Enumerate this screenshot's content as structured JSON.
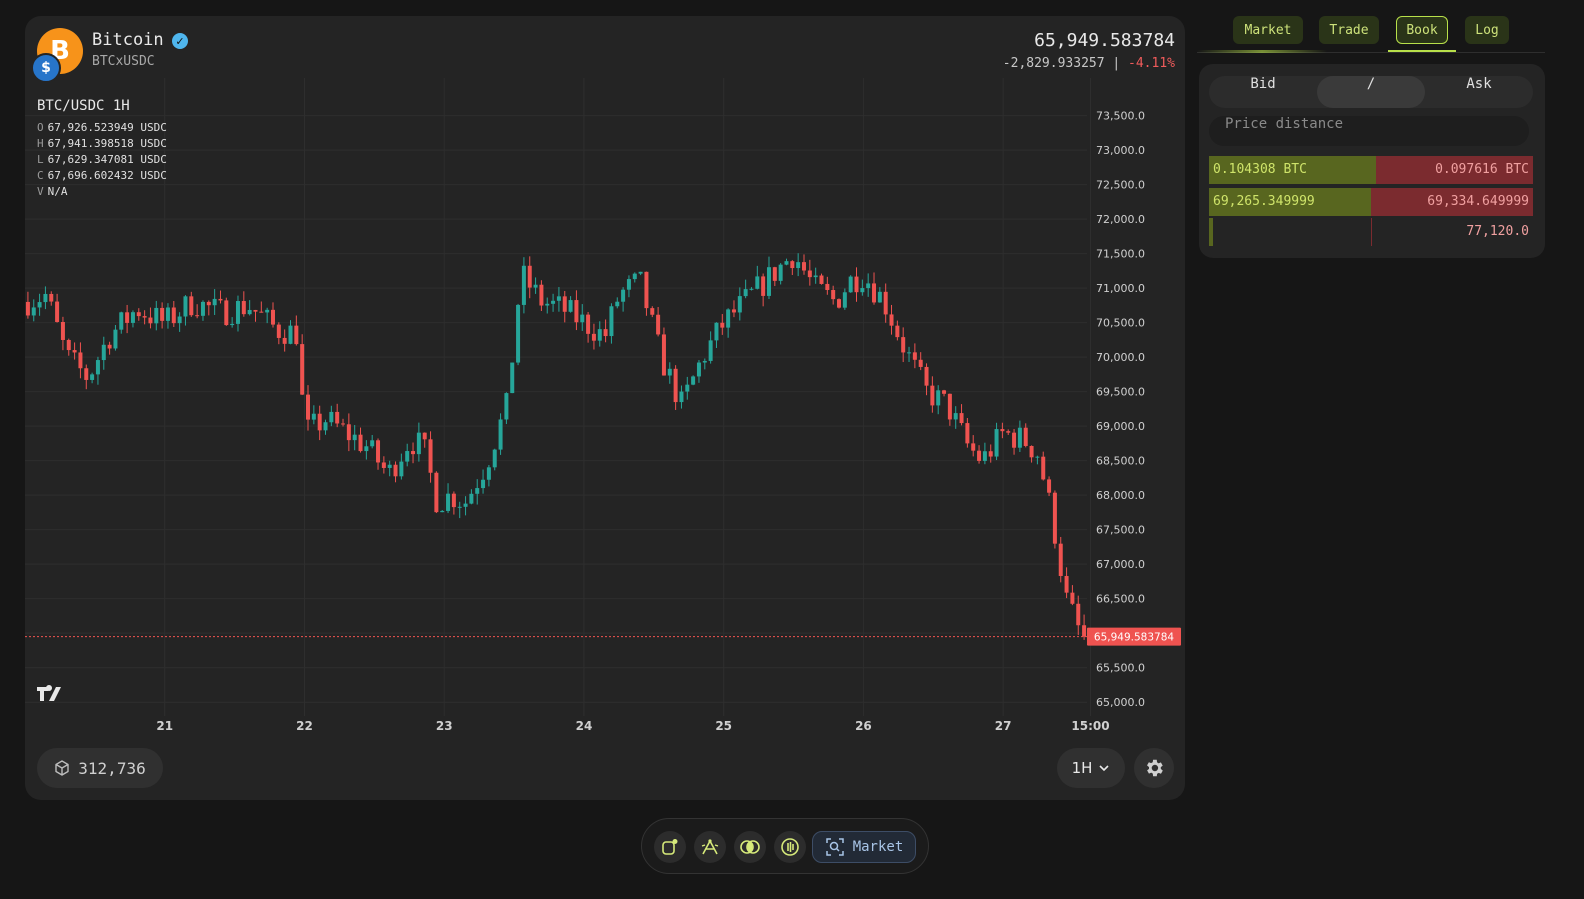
{
  "asset": {
    "name": "Bitcoin",
    "pair": "BTCxUSDC",
    "price": "65,949.583784",
    "change_abs": "-2,829.933257",
    "change_sep": "|",
    "change_pct": "-4.11%",
    "base_symbol": "B",
    "quote_symbol": "$"
  },
  "chart_header": {
    "title": "BTC/USDC 1H",
    "ohlc": [
      {
        "key": "O",
        "value": "67,926.523949 USDC"
      },
      {
        "key": "H",
        "value": "67,941.398518 USDC"
      },
      {
        "key": "L",
        "value": "67,629.347081 USDC"
      },
      {
        "key": "C",
        "value": "67,696.602432 USDC"
      },
      {
        "key": "V",
        "value": "N/A"
      }
    ]
  },
  "chart_data": {
    "type": "candlestick",
    "interval": "1H",
    "ylim": [
      64800,
      73900
    ],
    "y_ticks": [
      65000,
      65500,
      66000,
      66500,
      67000,
      67500,
      68000,
      68500,
      69000,
      69500,
      70000,
      70500,
      71000,
      71500,
      72000,
      72500,
      73000,
      73500
    ],
    "y_tick_labels": [
      "65,000.0",
      "65,500.0",
      "66,000.0",
      "66,500.0",
      "67,000.0",
      "67,500.0",
      "68,000.0",
      "68,500.0",
      "69,000.0",
      "69,500.0",
      "70,000.0",
      "70,500.0",
      "71,000.0",
      "71,500.0",
      "72,000.0",
      "72,500.0",
      "73,000.0",
      "73,500.0"
    ],
    "x_start_day": 20.0,
    "x_end_day": 27.6,
    "x_ticks": [
      {
        "day": 21,
        "label": "21"
      },
      {
        "day": 22,
        "label": "22"
      },
      {
        "day": 23,
        "label": "23"
      },
      {
        "day": 24,
        "label": "24"
      },
      {
        "day": 25,
        "label": "25"
      },
      {
        "day": 26,
        "label": "26"
      },
      {
        "day": 27,
        "label": "27"
      },
      {
        "day": 27.625,
        "label": "15:00"
      }
    ],
    "anchors": [
      [
        20.0,
        70800
      ],
      [
        20.15,
        70900
      ],
      [
        20.3,
        70000
      ],
      [
        20.45,
        69700
      ],
      [
        20.6,
        70300
      ],
      [
        20.8,
        70700
      ],
      [
        21.0,
        70500
      ],
      [
        21.2,
        70800
      ],
      [
        21.4,
        70650
      ],
      [
        21.6,
        70750
      ],
      [
        21.8,
        70400
      ],
      [
        21.95,
        70350
      ],
      [
        22.0,
        68900
      ],
      [
        22.15,
        69100
      ],
      [
        22.3,
        68900
      ],
      [
        22.45,
        68700
      ],
      [
        22.6,
        68300
      ],
      [
        22.75,
        68800
      ],
      [
        22.85,
        68700
      ],
      [
        22.95,
        67900
      ],
      [
        23.05,
        68000
      ],
      [
        23.15,
        67900
      ],
      [
        23.3,
        68450
      ],
      [
        23.45,
        69300
      ],
      [
        23.55,
        71200
      ],
      [
        23.7,
        70800
      ],
      [
        23.85,
        70700
      ],
      [
        24.0,
        70500
      ],
      [
        24.15,
        70300
      ],
      [
        24.25,
        70900
      ],
      [
        24.4,
        71100
      ],
      [
        24.55,
        70000
      ],
      [
        24.7,
        69300
      ],
      [
        24.85,
        70000
      ],
      [
        25.0,
        70500
      ],
      [
        25.2,
        70900
      ],
      [
        25.35,
        71200
      ],
      [
        25.5,
        71500
      ],
      [
        25.65,
        71000
      ],
      [
        25.8,
        70800
      ],
      [
        25.9,
        71100
      ],
      [
        26.0,
        71200
      ],
      [
        26.15,
        70800
      ],
      [
        26.3,
        70100
      ],
      [
        26.45,
        69500
      ],
      [
        26.6,
        69300
      ],
      [
        26.75,
        68700
      ],
      [
        26.85,
        68500
      ],
      [
        27.0,
        68900
      ],
      [
        27.15,
        68800
      ],
      [
        27.25,
        68600
      ],
      [
        27.35,
        67700
      ],
      [
        27.45,
        66500
      ],
      [
        27.55,
        66000
      ],
      [
        27.6,
        65950
      ]
    ],
    "last_price": 65949.583784,
    "last_price_label": "65,949.583784",
    "up_color": "#26a69a",
    "down_color": "#ef5350"
  },
  "footer": {
    "block_height": "312,736",
    "timeframe": "1H"
  },
  "tabs": [
    {
      "label": "Market",
      "active": false
    },
    {
      "label": "Trade",
      "active": false
    },
    {
      "label": "Book",
      "active": true
    },
    {
      "label": "Log",
      "active": false
    }
  ],
  "orderbook": {
    "segments": [
      "Bid",
      "/",
      "Ask"
    ],
    "price_distance_placeholder": "Price distance",
    "rows": [
      {
        "bid": "0.104308 BTC",
        "ask": "0.097616 BTC",
        "bid_frac": 0.515,
        "ask_frac": 0.485
      },
      {
        "bid": "69,265.349999",
        "ask": "69,334.649999",
        "bid_frac": 0.5,
        "ask_frac": 0.5
      },
      {
        "bid": "",
        "ask": "77,120.0",
        "bid_frac": 0,
        "ask_frac": 0
      }
    ]
  },
  "toolbar": {
    "market_label": "Market"
  }
}
